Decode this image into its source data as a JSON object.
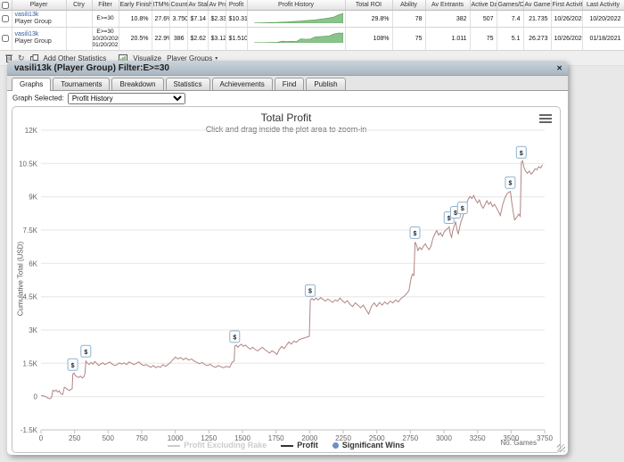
{
  "table": {
    "headers": [
      "Player",
      "Ctry",
      "Filter",
      "Early Finishes",
      "ITM%",
      "Count",
      "Av Stake",
      "Av Prof",
      "Profit",
      "Profit History",
      "Total ROI",
      "Ability",
      "Av Entrants",
      "Active Days",
      "Games/Day",
      "Av Game L",
      "First Activity",
      "Last Activity"
    ],
    "rows": [
      {
        "player_link": "vasili13k",
        "player_sub": "Player Group",
        "ctry": "",
        "filter_lines": [
          "E>=30"
        ],
        "stats": [
          "10.8%",
          "27.6%",
          "3.750",
          "$7.14",
          "$2.33",
          "$10.319"
        ],
        "sparkline": [
          0.2,
          0.3,
          0.4,
          0.5,
          0.7,
          0.9,
          1.1,
          1.3,
          1.6,
          1.9,
          2.2,
          2.6,
          3,
          3.4,
          4,
          4.6,
          5.4,
          6.4,
          8.5,
          10
        ],
        "stats2": [
          "29.8%",
          "78",
          "382",
          "507",
          "7.4",
          "21.735",
          "10/26/2020",
          "10/20/2022"
        ]
      },
      {
        "player_link": "vasili13k",
        "player_sub": "Player Group",
        "ctry": "",
        "filter_lines": [
          "E>=30",
          "10/20/2020",
          "01/20/2021"
        ],
        "stats": [
          "20.5%",
          "22.9%",
          "386",
          "$2.62",
          "$3.12",
          "$1.510"
        ],
        "sparkline": [
          0.1,
          0.15,
          0.2,
          0.3,
          0.4,
          0.5,
          1.6,
          1.3,
          1.5,
          1.4,
          4,
          3.6,
          3.8,
          6,
          6.3,
          6.6,
          7,
          9,
          10,
          9.8
        ],
        "stats2": [
          "108%",
          "75",
          "1.011",
          "75",
          "5.1",
          "26.273",
          "10/26/2020",
          "01/18/2021"
        ]
      }
    ]
  },
  "toolbar": {
    "add_other_statistics": "Add Other Statistics",
    "visualize": "Visualize",
    "player_groups": "Player Groups",
    "caret": "▾",
    "refresh_glyph": "↻"
  },
  "panel": {
    "title": "vasili13k (Player Group) Filter:E>=30",
    "close_glyph": "✕",
    "tabs": [
      "Graphs",
      "Tournaments",
      "Breakdown",
      "Statistics",
      "Achievements",
      "Find",
      "Publish"
    ],
    "active_tab": "Graphs",
    "graph_selected_label": "Graph Selected:",
    "graph_selected_value": "Profit History"
  },
  "chart_data": {
    "type": "line",
    "title": "Total Profit",
    "subtitle": "Click and drag inside the plot area to zoom-in",
    "xlabel": "No. Games",
    "ylabel": "Cumulative Total (USD)",
    "units": "thousands USD",
    "xlim": [
      0,
      3750
    ],
    "ylim_k": [
      -1.5,
      12
    ],
    "x_ticks": [
      0,
      250,
      500,
      750,
      1000,
      1250,
      1500,
      1750,
      2000,
      2250,
      2500,
      2750,
      3000,
      3250,
      3500,
      3750
    ],
    "y_ticks_k": [
      -1.5,
      0,
      1.5,
      3,
      4.5,
      6,
      7.5,
      9,
      10.5,
      12
    ],
    "grid": true,
    "legend_position": "bottom-center",
    "legend": [
      {
        "label": "Profit Excluding Rake",
        "type": "line",
        "color": "#cccccc",
        "text_color": "#cccccc",
        "enabled": false
      },
      {
        "label": "Profit",
        "type": "line",
        "color": "#333333",
        "text_color": "#333333",
        "enabled": true
      },
      {
        "label": "Significant Wins",
        "type": "circle",
        "color": "#6d8fc7",
        "text_color": "#333333",
        "enabled": true
      }
    ],
    "series": [
      {
        "name": "Profit Excluding Rake",
        "enabled": false,
        "color": "#cccccc",
        "points_k": []
      },
      {
        "name": "Profit",
        "enabled": true,
        "color": "#b28484",
        "points_k": [
          [
            0,
            0.05
          ],
          [
            30,
            0.02
          ],
          [
            50,
            -0.06
          ],
          [
            65,
            -0.1
          ],
          [
            78,
            -0.04
          ],
          [
            88,
            0.28
          ],
          [
            100,
            0.24
          ],
          [
            112,
            0.3
          ],
          [
            124,
            0.2
          ],
          [
            136,
            0.26
          ],
          [
            148,
            0.12
          ],
          [
            162,
            0.1
          ],
          [
            174,
            0.42
          ],
          [
            186,
            0.38
          ],
          [
            198,
            0.32
          ],
          [
            210,
            0.27
          ],
          [
            222,
            0.32
          ],
          [
            232,
            0.36
          ],
          [
            237,
            1.02
          ],
          [
            246,
            1.06
          ],
          [
            254,
            0.96
          ],
          [
            266,
            0.9
          ],
          [
            280,
            0.86
          ],
          [
            294,
            0.92
          ],
          [
            308,
            0.84
          ],
          [
            320,
            0.9
          ],
          [
            328,
            1.06
          ],
          [
            334,
            1.6
          ],
          [
            344,
            1.52
          ],
          [
            358,
            1.44
          ],
          [
            372,
            1.54
          ],
          [
            386,
            1.46
          ],
          [
            400,
            1.58
          ],
          [
            414,
            1.5
          ],
          [
            428,
            1.4
          ],
          [
            444,
            1.46
          ],
          [
            460,
            1.52
          ],
          [
            476,
            1.44
          ],
          [
            494,
            1.5
          ],
          [
            512,
            1.56
          ],
          [
            530,
            1.46
          ],
          [
            548,
            1.4
          ],
          [
            566,
            1.44
          ],
          [
            584,
            1.52
          ],
          [
            602,
            1.46
          ],
          [
            620,
            1.52
          ],
          [
            638,
            1.44
          ],
          [
            656,
            1.56
          ],
          [
            674,
            1.5
          ],
          [
            692,
            1.44
          ],
          [
            710,
            1.5
          ],
          [
            728,
            1.56
          ],
          [
            746,
            1.46
          ],
          [
            764,
            1.4
          ],
          [
            782,
            1.44
          ],
          [
            800,
            1.38
          ],
          [
            818,
            1.32
          ],
          [
            836,
            1.4
          ],
          [
            854,
            1.3
          ],
          [
            872,
            1.36
          ],
          [
            890,
            1.32
          ],
          [
            908,
            1.44
          ],
          [
            926,
            1.36
          ],
          [
            944,
            1.44
          ],
          [
            962,
            1.52
          ],
          [
            980,
            1.66
          ],
          [
            1000,
            1.78
          ],
          [
            1020,
            1.7
          ],
          [
            1040,
            1.76
          ],
          [
            1060,
            1.66
          ],
          [
            1080,
            1.74
          ],
          [
            1100,
            1.64
          ],
          [
            1120,
            1.7
          ],
          [
            1140,
            1.6
          ],
          [
            1160,
            1.54
          ],
          [
            1180,
            1.48
          ],
          [
            1200,
            1.54
          ],
          [
            1220,
            1.44
          ],
          [
            1240,
            1.4
          ],
          [
            1260,
            1.46
          ],
          [
            1280,
            1.36
          ],
          [
            1300,
            1.32
          ],
          [
            1320,
            1.4
          ],
          [
            1340,
            1.34
          ],
          [
            1360,
            1.3
          ],
          [
            1380,
            1.36
          ],
          [
            1405,
            1.32
          ],
          [
            1425,
            1.56
          ],
          [
            1438,
            1.6
          ],
          [
            1443,
            2.28
          ],
          [
            1455,
            2.32
          ],
          [
            1465,
            2.22
          ],
          [
            1478,
            2.3
          ],
          [
            1492,
            2.36
          ],
          [
            1506,
            2.26
          ],
          [
            1522,
            2.32
          ],
          [
            1540,
            2.22
          ],
          [
            1558,
            2.14
          ],
          [
            1576,
            2.22
          ],
          [
            1594,
            2.12
          ],
          [
            1612,
            2.06
          ],
          [
            1630,
            2.14
          ],
          [
            1648,
            2.22
          ],
          [
            1666,
            2.12
          ],
          [
            1684,
            2.04
          ],
          [
            1702,
            1.96
          ],
          [
            1720,
            2.06
          ],
          [
            1738,
            2.0
          ],
          [
            1756,
            1.9
          ],
          [
            1774,
            2.12
          ],
          [
            1792,
            2.26
          ],
          [
            1810,
            2.16
          ],
          [
            1828,
            2.32
          ],
          [
            1846,
            2.46
          ],
          [
            1864,
            2.36
          ],
          [
            1882,
            2.5
          ],
          [
            1900,
            2.44
          ],
          [
            1920,
            2.56
          ],
          [
            1945,
            2.62
          ],
          [
            1970,
            2.66
          ],
          [
            1998,
            2.72
          ],
          [
            2005,
            4.36
          ],
          [
            2018,
            4.42
          ],
          [
            2032,
            4.34
          ],
          [
            2046,
            4.44
          ],
          [
            2064,
            4.36
          ],
          [
            2082,
            4.46
          ],
          [
            2100,
            4.38
          ],
          [
            2118,
            4.3
          ],
          [
            2136,
            4.4
          ],
          [
            2154,
            4.32
          ],
          [
            2172,
            4.24
          ],
          [
            2190,
            4.36
          ],
          [
            2208,
            4.3
          ],
          [
            2226,
            4.44
          ],
          [
            2244,
            4.32
          ],
          [
            2262,
            4.22
          ],
          [
            2280,
            4.32
          ],
          [
            2300,
            4.16
          ],
          [
            2320,
            4.06
          ],
          [
            2340,
            4.22
          ],
          [
            2360,
            4.12
          ],
          [
            2380,
            4.0
          ],
          [
            2400,
            4.12
          ],
          [
            2420,
            3.92
          ],
          [
            2440,
            3.72
          ],
          [
            2460,
            4.06
          ],
          [
            2480,
            4.22
          ],
          [
            2500,
            4.06
          ],
          [
            2520,
            4.24
          ],
          [
            2540,
            4.12
          ],
          [
            2560,
            4.26
          ],
          [
            2580,
            4.16
          ],
          [
            2600,
            4.3
          ],
          [
            2620,
            4.22
          ],
          [
            2640,
            4.36
          ],
          [
            2660,
            4.26
          ],
          [
            2680,
            4.42
          ],
          [
            2700,
            4.5
          ],
          [
            2720,
            4.62
          ],
          [
            2740,
            4.78
          ],
          [
            2755,
            5.32
          ],
          [
            2766,
            5.52
          ],
          [
            2776,
            5.46
          ],
          [
            2785,
            6.96
          ],
          [
            2796,
            6.82
          ],
          [
            2806,
            6.58
          ],
          [
            2820,
            6.72
          ],
          [
            2834,
            6.62
          ],
          [
            2848,
            6.78
          ],
          [
            2862,
            6.88
          ],
          [
            2876,
            6.72
          ],
          [
            2890,
            6.62
          ],
          [
            2904,
            6.78
          ],
          [
            2918,
            7.12
          ],
          [
            2932,
            7.32
          ],
          [
            2946,
            7.48
          ],
          [
            2960,
            7.28
          ],
          [
            2974,
            7.38
          ],
          [
            2988,
            7.22
          ],
          [
            3002,
            7.42
          ],
          [
            3016,
            7.52
          ],
          [
            3030,
            7.58
          ],
          [
            3039,
            7.64
          ],
          [
            3048,
            7.32
          ],
          [
            3057,
            7.18
          ],
          [
            3066,
            7.48
          ],
          [
            3076,
            7.68
          ],
          [
            3087,
            7.88
          ],
          [
            3097,
            7.52
          ],
          [
            3107,
            7.32
          ],
          [
            3117,
            7.62
          ],
          [
            3127,
            7.88
          ],
          [
            3139,
            8.08
          ],
          [
            3152,
            8.32
          ],
          [
            3166,
            8.62
          ],
          [
            3180,
            8.88
          ],
          [
            3194,
            9.02
          ],
          [
            3208,
            8.92
          ],
          [
            3222,
            9.06
          ],
          [
            3236,
            8.86
          ],
          [
            3250,
            8.72
          ],
          [
            3264,
            8.86
          ],
          [
            3278,
            8.62
          ],
          [
            3292,
            8.48
          ],
          [
            3306,
            8.66
          ],
          [
            3320,
            8.82
          ],
          [
            3334,
            8.66
          ],
          [
            3348,
            8.76
          ],
          [
            3362,
            8.56
          ],
          [
            3376,
            8.66
          ],
          [
            3390,
            8.52
          ],
          [
            3404,
            8.36
          ],
          [
            3420,
            8.16
          ],
          [
            3436,
            8.62
          ],
          [
            3452,
            8.92
          ],
          [
            3468,
            9.12
          ],
          [
            3482,
            9.2
          ],
          [
            3495,
            9.24
          ],
          [
            3506,
            8.72
          ],
          [
            3516,
            8.32
          ],
          [
            3526,
            7.96
          ],
          [
            3540,
            8.06
          ],
          [
            3556,
            8.22
          ],
          [
            3568,
            8.12
          ],
          [
            3577,
            10.56
          ],
          [
            3586,
            10.62
          ],
          [
            3596,
            10.32
          ],
          [
            3608,
            10.16
          ],
          [
            3622,
            10.06
          ],
          [
            3636,
            10.16
          ],
          [
            3650,
            10.02
          ],
          [
            3664,
            10.12
          ],
          [
            3678,
            10.26
          ],
          [
            3692,
            10.22
          ],
          [
            3706,
            10.36
          ],
          [
            3720,
            10.3
          ],
          [
            3734,
            10.44
          ]
        ]
      }
    ],
    "significant_wins": {
      "name": "Significant Wins",
      "marker_glyph": "$",
      "box_fill": "#fbfdff",
      "box_border": "#8fb3cf",
      "points_k": [
        [
          236,
          1.02
        ],
        [
          334,
          1.62
        ],
        [
          1442,
          2.28
        ],
        [
          2004,
          4.36
        ],
        [
          2784,
          6.96
        ],
        [
          3038,
          7.64
        ],
        [
          3086,
          7.88
        ],
        [
          3138,
          8.08
        ],
        [
          3494,
          9.22
        ],
        [
          3576,
          10.58
        ]
      ]
    }
  }
}
